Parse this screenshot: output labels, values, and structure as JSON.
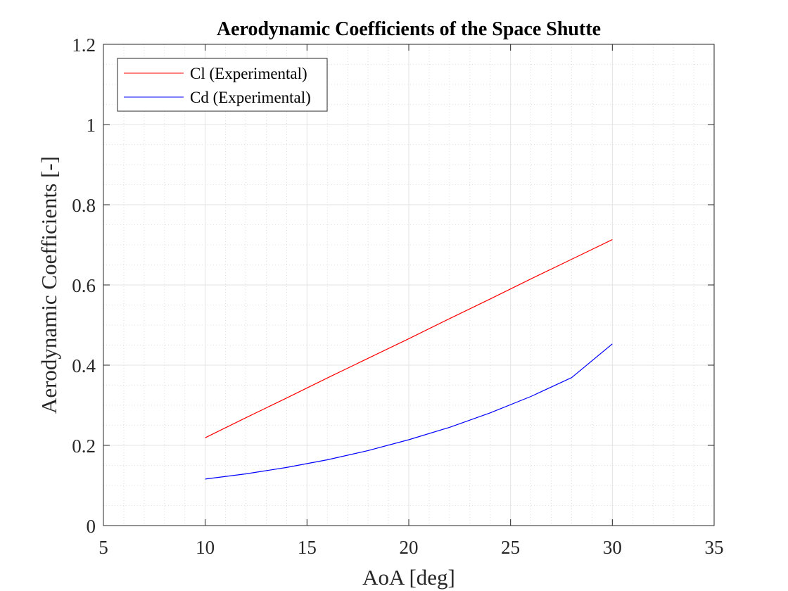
{
  "chart_data": {
    "type": "line",
    "title": "Aerodynamic Coefficients of the Space Shutte",
    "xlabel": "AoA [deg]",
    "ylabel": "Aerodynamic Coefficients [-]",
    "xlim": [
      5,
      35
    ],
    "ylim": [
      0,
      1.2
    ],
    "xticks": [
      "5",
      "10",
      "15",
      "20",
      "25",
      "30",
      "35"
    ],
    "yticks": [
      "0",
      "0.2",
      "0.4",
      "0.6",
      "0.8",
      "1",
      "1.2"
    ],
    "grid": "major and minor",
    "legend_position": "top-left",
    "series": [
      {
        "name": "Cl (Experimental)",
        "color": "#ff0000",
        "x": [
          10,
          12,
          14,
          16,
          18,
          20,
          22,
          24,
          26,
          28,
          30
        ],
        "y": [
          0.219,
          0.269,
          0.318,
          0.368,
          0.417,
          0.466,
          0.516,
          0.565,
          0.615,
          0.664,
          0.713
        ]
      },
      {
        "name": "Cd (Experimental)",
        "color": "#0000ff",
        "x": [
          10,
          12,
          14,
          16,
          18,
          20,
          22,
          24,
          26,
          28,
          30
        ],
        "y": [
          0.116,
          0.129,
          0.145,
          0.164,
          0.187,
          0.214,
          0.245,
          0.281,
          0.322,
          0.369,
          0.453
        ]
      }
    ]
  }
}
